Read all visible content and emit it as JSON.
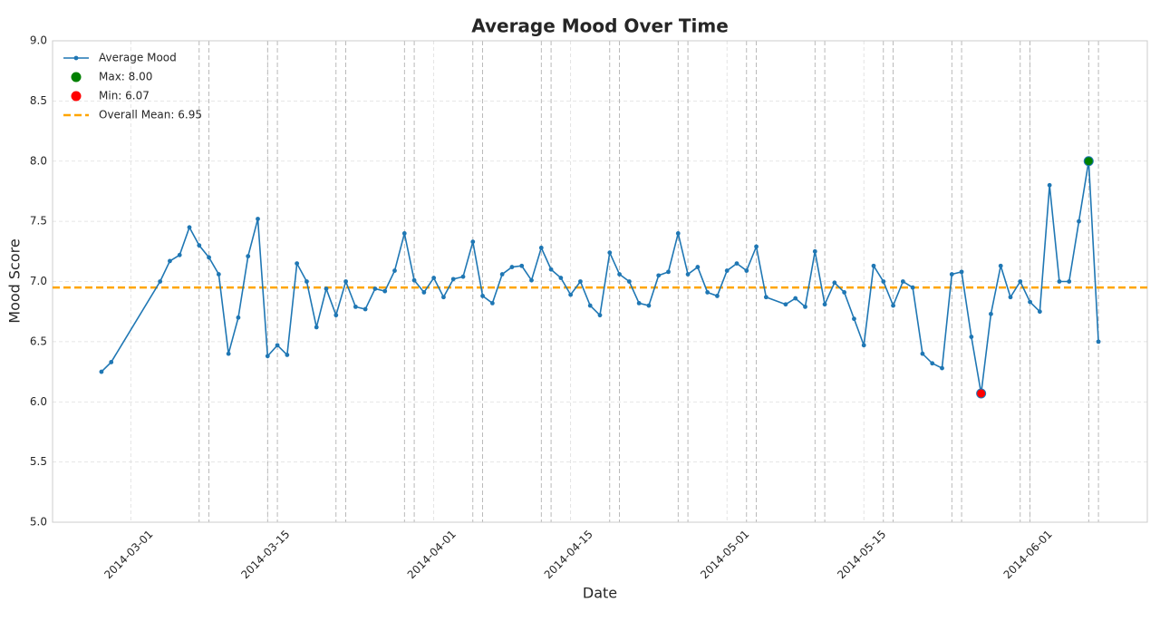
{
  "chart_data": {
    "type": "line",
    "title": "Average Mood Over Time",
    "x_label": "Date",
    "y_label": "Mood Score",
    "x": [
      "2014-02-26",
      "2014-02-27",
      "2014-03-04",
      "2014-03-05",
      "2014-03-06",
      "2014-03-07",
      "2014-03-08",
      "2014-03-09",
      "2014-03-10",
      "2014-03-11",
      "2014-03-12",
      "2014-03-13",
      "2014-03-14",
      "2014-03-15",
      "2014-03-16",
      "2014-03-17",
      "2014-03-18",
      "2014-03-19",
      "2014-03-20",
      "2014-03-21",
      "2014-03-22",
      "2014-03-23",
      "2014-03-24",
      "2014-03-25",
      "2014-03-26",
      "2014-03-27",
      "2014-03-28",
      "2014-03-29",
      "2014-03-30",
      "2014-03-31",
      "2014-04-01",
      "2014-04-02",
      "2014-04-03",
      "2014-04-04",
      "2014-04-05",
      "2014-04-06",
      "2014-04-07",
      "2014-04-08",
      "2014-04-09",
      "2014-04-10",
      "2014-04-11",
      "2014-04-12",
      "2014-04-13",
      "2014-04-14",
      "2014-04-15",
      "2014-04-16",
      "2014-04-17",
      "2014-04-18",
      "2014-04-19",
      "2014-04-20",
      "2014-04-21",
      "2014-04-22",
      "2014-04-23",
      "2014-04-24",
      "2014-04-25",
      "2014-04-26",
      "2014-04-27",
      "2014-04-28",
      "2014-04-29",
      "2014-04-30",
      "2014-05-01",
      "2014-05-02",
      "2014-05-03",
      "2014-05-04",
      "2014-05-05",
      "2014-05-07",
      "2014-05-08",
      "2014-05-09",
      "2014-05-10",
      "2014-05-11",
      "2014-05-12",
      "2014-05-13",
      "2014-05-14",
      "2014-05-15",
      "2014-05-16",
      "2014-05-17",
      "2014-05-18",
      "2014-05-19",
      "2014-05-20",
      "2014-05-21",
      "2014-05-22",
      "2014-05-23",
      "2014-05-24",
      "2014-05-25",
      "2014-05-26",
      "2014-05-27",
      "2014-05-28",
      "2014-05-29",
      "2014-05-30",
      "2014-05-31",
      "2014-06-01",
      "2014-06-02",
      "2014-06-03",
      "2014-06-04",
      "2014-06-05",
      "2014-06-06",
      "2014-06-07",
      "2014-06-08"
    ],
    "series": [
      {
        "name": "Average Mood",
        "color": "#1f77b4",
        "values": [
          6.25,
          6.33,
          7.0,
          7.17,
          7.22,
          7.45,
          7.3,
          7.2,
          7.06,
          6.4,
          6.7,
          7.21,
          7.52,
          6.38,
          6.47,
          6.39,
          7.15,
          7.0,
          6.62,
          6.94,
          6.72,
          7.0,
          6.79,
          6.77,
          6.94,
          6.92,
          7.09,
          7.4,
          7.01,
          6.91,
          7.03,
          6.87,
          7.02,
          7.04,
          7.33,
          6.88,
          6.82,
          7.06,
          7.12,
          7.13,
          7.01,
          7.28,
          7.1,
          7.03,
          6.89,
          7.0,
          6.8,
          6.72,
          7.24,
          7.06,
          7.0,
          6.82,
          6.8,
          7.05,
          7.08,
          7.4,
          7.06,
          7.12,
          6.91,
          6.88,
          7.09,
          7.15,
          7.09,
          7.29,
          6.87,
          6.81,
          6.86,
          6.79,
          7.25,
          6.81,
          6.99,
          6.91,
          6.69,
          6.47,
          7.13,
          7.0,
          6.8,
          7.0,
          6.95,
          6.4,
          6.32,
          6.28,
          7.06,
          7.08,
          6.54,
          6.07,
          6.73,
          7.13,
          6.87,
          7.0,
          6.83,
          6.75,
          7.8,
          7.0,
          7.0,
          7.5,
          8.0,
          6.5
        ]
      },
      {
        "name": "Max: 8.00",
        "type": "point",
        "color": "green",
        "x": [
          "2014-06-07"
        ],
        "values": [
          8.0
        ]
      },
      {
        "name": "Min: 6.07",
        "type": "point",
        "color": "red",
        "x": [
          "2014-05-27"
        ],
        "values": [
          6.07
        ]
      },
      {
        "name": "Overall Mean: 6.95",
        "type": "hline",
        "color": "orange",
        "value": 6.95
      }
    ],
    "xlim": [
      "2014-02-21",
      "2014-06-13"
    ],
    "xticks": [
      "2014-03-01",
      "2014-03-15",
      "2014-04-01",
      "2014-04-15",
      "2014-05-01",
      "2014-05-15",
      "2014-06-01"
    ],
    "ylim": [
      5,
      9
    ],
    "yticks": [
      {
        "value": 5,
        "label": "5.0"
      },
      5.5,
      {
        "value": 6,
        "label": "6.0"
      },
      6.5,
      {
        "value": 7,
        "label": "7.0"
      },
      7.5,
      {
        "value": 8,
        "label": "8.0"
      },
      8.5,
      {
        "value": 9,
        "label": "9.0"
      }
    ],
    "grid": true,
    "weekend_lines": true,
    "legend": "upper left"
  }
}
